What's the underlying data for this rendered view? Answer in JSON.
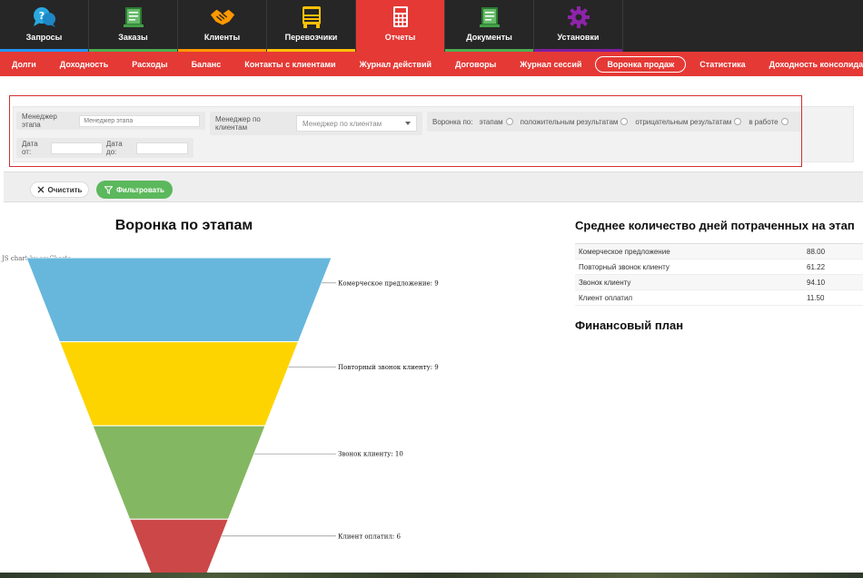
{
  "topnav": {
    "items": [
      {
        "label": "Запросы",
        "icon": "chat-bubbles-icon",
        "bar": "#2196f3"
      },
      {
        "label": "Заказы",
        "icon": "document-list-icon",
        "bar": "#4caf50"
      },
      {
        "label": "Клиенты",
        "icon": "handshake-icon",
        "bar": "#ff9800"
      },
      {
        "label": "Перевозчики",
        "icon": "truck-icon",
        "bar": "#ffc107"
      },
      {
        "label": "Отчеты",
        "icon": "calculator-icon",
        "bar": "#e53935"
      },
      {
        "label": "Документы",
        "icon": "documents-icon",
        "bar": "#4caf50"
      },
      {
        "label": "Установки",
        "icon": "gear-icon",
        "bar": "#7b1fa2"
      }
    ],
    "active_index": 4
  },
  "subnav": {
    "items": [
      "Долги",
      "Доходность",
      "Расходы",
      "Баланс",
      "Контакты с клиентами",
      "Журнал действий",
      "Договоры",
      "Журнал сессий",
      "Воронка продаж",
      "Статистика",
      "Доходность консолидации"
    ],
    "active_index": 8
  },
  "filters": {
    "stage_manager_label": "Менеджер этапа",
    "stage_manager_placeholder": "Менеджер этапа",
    "client_manager_label": "Менеджер по клиентам",
    "client_manager_placeholder": "Менеджер по клиентам",
    "funnel_by_label": "Воронка по:",
    "radio_options": [
      "этапам",
      "положительным результатам",
      "отрицательным результатам",
      "в работе"
    ],
    "date_from_label": "Дата от:",
    "date_to_label": "Дата до:"
  },
  "actions": {
    "clear_label": "Очистить",
    "filter_label": "Фильтровать"
  },
  "funnel": {
    "title": "Воронка по этапам",
    "credit": "JS chart by amCharts"
  },
  "chart_data": {
    "type": "funnel",
    "title": "Воронка по этапам",
    "categories": [
      "Комерческое предложение",
      "Повторный звонок клиенту",
      "Звонок клиенту",
      "Клиент оплатил"
    ],
    "values": [
      9,
      9,
      10,
      6
    ],
    "labels": [
      "Комерческое предложение: 9",
      "Повторный звонок клиенту: 9",
      "Звонок клиенту: 10",
      "Клиент оплатил: 6"
    ],
    "colors": [
      "#67b7dc",
      "#fdd400",
      "#84b761",
      "#cc4748"
    ]
  },
  "avg_days": {
    "title": "Среднее количество дней потраченных на этап",
    "rows": [
      {
        "stage": "Комерческое предложение",
        "days": "88.00"
      },
      {
        "stage": "Повторный звонок клиенту",
        "days": "61.22"
      },
      {
        "stage": "Звонок клиенту",
        "days": "94.10"
      },
      {
        "stage": "Клиент оплатил",
        "days": "11.50"
      }
    ]
  },
  "financial_plan": {
    "title": "Финансовый план"
  }
}
